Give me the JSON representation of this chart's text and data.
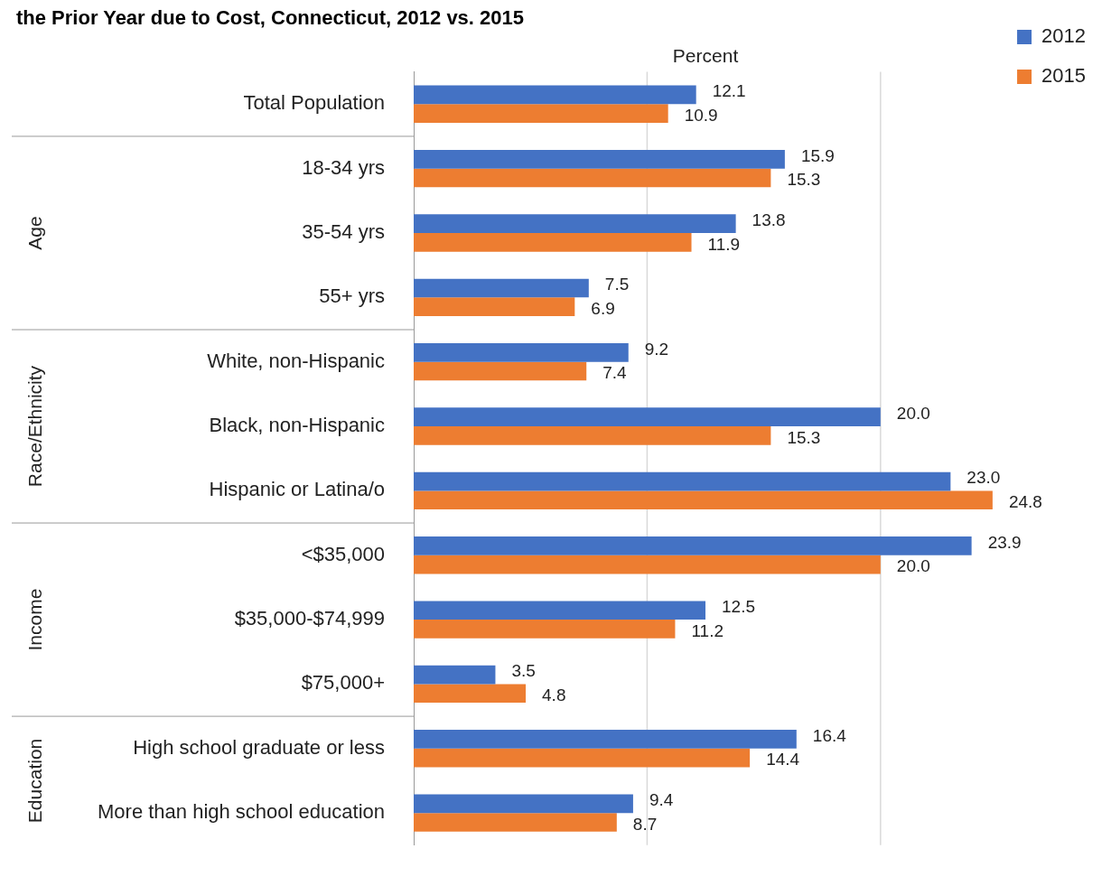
{
  "chart_data": {
    "type": "bar",
    "orientation": "horizontal",
    "title": "the Prior Year due to Cost, Connecticut, 2012 vs. 2015",
    "xlabel": "Percent",
    "categories": [
      "Total Population",
      "18-34 yrs",
      "35-54 yrs",
      "55+ yrs",
      "White, non-Hispanic",
      "Black, non-Hispanic",
      "Hispanic or Latina/o",
      "<$35,000",
      "$35,000-$74,999",
      "$75,000+",
      "High school graduate or less",
      "More than high school education"
    ],
    "series": [
      {
        "name": "2012",
        "color": "#4472c4",
        "values": [
          12.1,
          15.9,
          13.8,
          7.5,
          9.2,
          20,
          23,
          23.9,
          12.5,
          3.5,
          16.4,
          9.4
        ],
        "value_labels": [
          "12.1",
          "15.9",
          "13.8",
          "7.5",
          "9.2",
          "20.0",
          "23.0",
          "23.9",
          "12.5",
          "3.5",
          "16.4",
          "9.4"
        ]
      },
      {
        "name": "2015",
        "color": "#ed7d31",
        "values": [
          10.9,
          15.3,
          11.9,
          6.9,
          7.4,
          15.3,
          24.8,
          20,
          11.2,
          4.8,
          14.4,
          8.7
        ],
        "value_labels": [
          "10.9",
          "15.3",
          "11.9",
          "6.9",
          "7.4",
          "15.3",
          "24.8",
          "20.0",
          "11.2",
          "4.8",
          "14.4",
          "8.7"
        ]
      }
    ],
    "ref_lines": [
      {
        "axis": "x",
        "value": 10,
        "color": "#d9d9d9"
      },
      {
        "axis": "x",
        "value": 20,
        "color": "#d9d9d9"
      }
    ],
    "legend": "right",
    "tick_labels": "y",
    "annotations": [
      "Age",
      "Race/Ethnicity",
      "Income",
      "Education"
    ]
  }
}
